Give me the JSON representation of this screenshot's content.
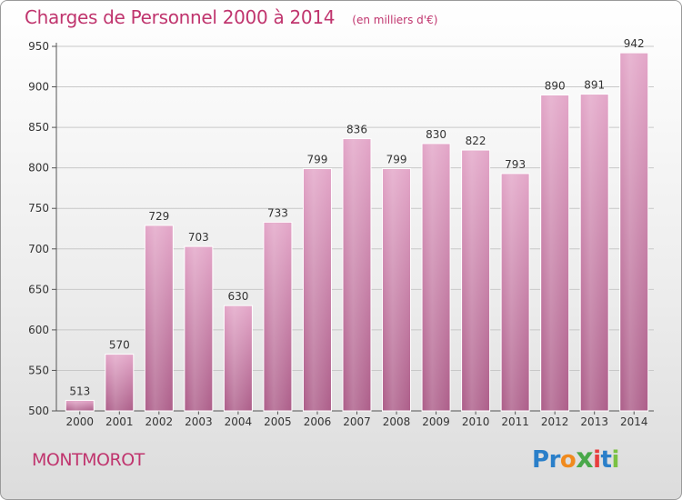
{
  "chart_data": {
    "type": "bar",
    "title": "Charges de Personnel 2000 à 2014",
    "subtitle": "(en milliers d'€)",
    "categories": [
      "2000",
      "2001",
      "2002",
      "2003",
      "2004",
      "2005",
      "2006",
      "2007",
      "2008",
      "2009",
      "2010",
      "2011",
      "2012",
      "2013",
      "2014"
    ],
    "values": [
      513,
      570,
      729,
      703,
      630,
      733,
      799,
      836,
      799,
      830,
      822,
      793,
      890,
      891,
      942
    ],
    "ylim": [
      500,
      950
    ],
    "yticks": [
      500,
      550,
      600,
      650,
      700,
      750,
      800,
      850,
      900,
      950
    ],
    "grid": true,
    "bar_color": "#d17fae"
  },
  "footer": {
    "location": "MONTMOROT"
  },
  "logo": {
    "letters": [
      {
        "ch": "P",
        "color": "#2a7fc9"
      },
      {
        "ch": "r",
        "color": "#2a7fc9"
      },
      {
        "ch": "o",
        "color": "#f08a1e"
      },
      {
        "ch": "x",
        "color": "#49a84a"
      },
      {
        "ch": "i",
        "color": "#e83e3e"
      },
      {
        "ch": "t",
        "color": "#2a7fc9"
      },
      {
        "ch": "i",
        "color": "#7ac142"
      }
    ]
  }
}
